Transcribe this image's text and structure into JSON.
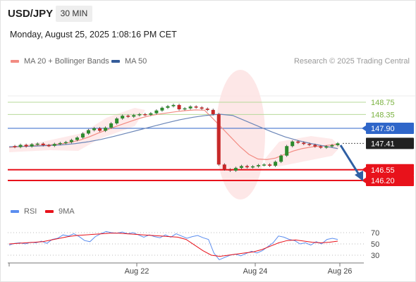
{
  "header": {
    "symbol": "USD/JPY",
    "timeframe": "30 MIN",
    "datetime": "Monday, August 25, 2025 1:08:16 PM CET"
  },
  "legend": {
    "ma20": {
      "label": "MA 20 + Bollinger Bands",
      "color": "#f28b82"
    },
    "ma50": {
      "label": "MA 50",
      "color": "#355c9a"
    },
    "credit": "Research © 2025 Trading Central",
    "rsi": {
      "label": "RSI",
      "color": "#5b8def"
    },
    "ma9": {
      "label": "9MA",
      "color": "#e8121b"
    }
  },
  "chart_data": [
    {
      "type": "line",
      "name": "price",
      "x_ticks": [
        "Aug 22",
        "Aug 24",
        "Aug 26"
      ],
      "ylim": [
        145.9,
        149.2
      ],
      "price_line": [
        147.32,
        147.29,
        147.36,
        147.31,
        147.38,
        147.4,
        147.35,
        147.33,
        147.39,
        147.42,
        147.45,
        147.52,
        147.6,
        147.73,
        147.84,
        147.9,
        147.82,
        147.92,
        148.06,
        148.22,
        148.31,
        148.28,
        148.33,
        148.36,
        148.34,
        148.39,
        148.48,
        148.57,
        148.62,
        148.66,
        148.52,
        148.55,
        148.61,
        148.58,
        148.54,
        148.5,
        148.36,
        146.72,
        146.56,
        146.52,
        146.61,
        146.67,
        146.63,
        146.66,
        146.7,
        146.72,
        146.68,
        146.81,
        147.01,
        147.32,
        147.47,
        147.43,
        147.39,
        147.36,
        147.31,
        147.27,
        147.31,
        147.35,
        147.41
      ],
      "ma20": [
        147.28,
        147.3,
        147.32,
        147.34,
        147.35,
        147.37,
        147.4,
        147.45,
        147.52,
        147.62,
        147.74,
        147.85,
        147.96,
        148.06,
        148.16,
        148.25,
        148.32,
        148.37,
        148.41,
        148.45,
        148.48,
        148.5,
        148.49,
        148.2,
        147.9,
        147.6,
        147.3,
        147.05,
        146.9,
        146.88,
        146.93,
        147.05,
        147.16,
        147.24,
        147.29,
        147.32,
        147.35,
        147.38
      ],
      "ma50": [
        147.3,
        147.31,
        147.32,
        147.34,
        147.36,
        147.4,
        147.46,
        147.54,
        147.64,
        147.75,
        147.86,
        147.97,
        148.08,
        148.18,
        148.26,
        148.32,
        148.36,
        148.32,
        148.14,
        147.96,
        147.78,
        147.62,
        147.5,
        147.4,
        147.32,
        147.24
      ],
      "levels": [
        {
          "value": "148.75",
          "kind": "resistance"
        },
        {
          "value": "148.35",
          "kind": "resistance"
        },
        {
          "value": "147.90",
          "kind": "pivot"
        },
        {
          "value": "147.41",
          "kind": "last"
        },
        {
          "value": "146.55",
          "kind": "support"
        },
        {
          "value": "146.20",
          "kind": "support"
        }
      ],
      "forecast": "down"
    },
    {
      "type": "line",
      "name": "RSI",
      "ylim": [
        20,
        80
      ],
      "y_ticks": [
        "70",
        "50",
        "30"
      ],
      "rsi": [
        48,
        51,
        52,
        50,
        53,
        52,
        55,
        51,
        58,
        60,
        66,
        64,
        68,
        63,
        56,
        54,
        63,
        68,
        72,
        70,
        69,
        71,
        68,
        70,
        66,
        62,
        66,
        63,
        61,
        66,
        62,
        68,
        64,
        60,
        63,
        65,
        61,
        58,
        34,
        22,
        26,
        30,
        32,
        29,
        33,
        37,
        34,
        38,
        45,
        52,
        64,
        62,
        58,
        56,
        50,
        52,
        48,
        54,
        50,
        58,
        60,
        58
      ],
      "ma9": [
        50,
        51,
        52,
        53,
        54,
        57,
        60,
        63,
        65,
        66,
        67,
        68,
        69,
        69,
        68,
        67,
        66,
        65,
        64,
        63,
        62,
        58,
        48,
        38,
        30,
        28,
        30,
        32,
        34,
        36,
        40,
        46,
        52,
        56,
        57,
        55,
        53,
        52,
        53,
        55
      ]
    }
  ]
}
